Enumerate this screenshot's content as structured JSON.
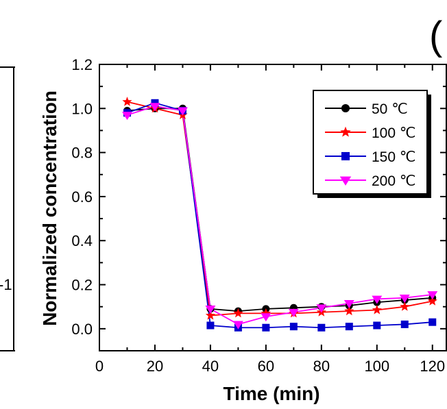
{
  "chart_data": {
    "type": "line",
    "xlabel": "Time (min)",
    "ylabel": "Normalized  concentration",
    "xlim": [
      0,
      125
    ],
    "ylim": [
      -0.1,
      1.2
    ],
    "x_ticks": [
      "0",
      "20",
      "40",
      "60",
      "80",
      "100",
      "120"
    ],
    "y_ticks": [
      "0.0",
      "0.2",
      "0.4",
      "0.6",
      "0.8",
      "1.0",
      "1.2"
    ],
    "panel_letter": "(",
    "left_panel_fragment": "-1",
    "legend_position": "top-right",
    "x": [
      10,
      20,
      30,
      40,
      50,
      60,
      70,
      80,
      90,
      100,
      110,
      120
    ],
    "series": [
      {
        "name": "50 ℃",
        "color": "#000000",
        "marker": "circle",
        "values": [
          0.99,
          1.0,
          1.0,
          0.09,
          0.08,
          0.09,
          0.095,
          0.1,
          0.105,
          0.12,
          0.13,
          0.14
        ]
      },
      {
        "name": "100 ℃",
        "color": "#ff0000",
        "marker": "star",
        "values": [
          1.03,
          1.0,
          0.97,
          0.06,
          0.07,
          0.07,
          0.07,
          0.075,
          0.08,
          0.085,
          0.1,
          0.125
        ]
      },
      {
        "name": "150 ℃",
        "color": "#0000cc",
        "marker": "square",
        "values": [
          0.98,
          1.025,
          0.99,
          0.015,
          0.005,
          0.005,
          0.01,
          0.005,
          0.01,
          0.015,
          0.02,
          0.03
        ]
      },
      {
        "name": "200 ℃",
        "color": "#ff00ff",
        "marker": "triangle-down",
        "values": [
          0.97,
          1.01,
          0.99,
          0.09,
          0.02,
          0.055,
          0.075,
          0.095,
          0.115,
          0.135,
          0.14,
          0.155
        ]
      }
    ]
  }
}
